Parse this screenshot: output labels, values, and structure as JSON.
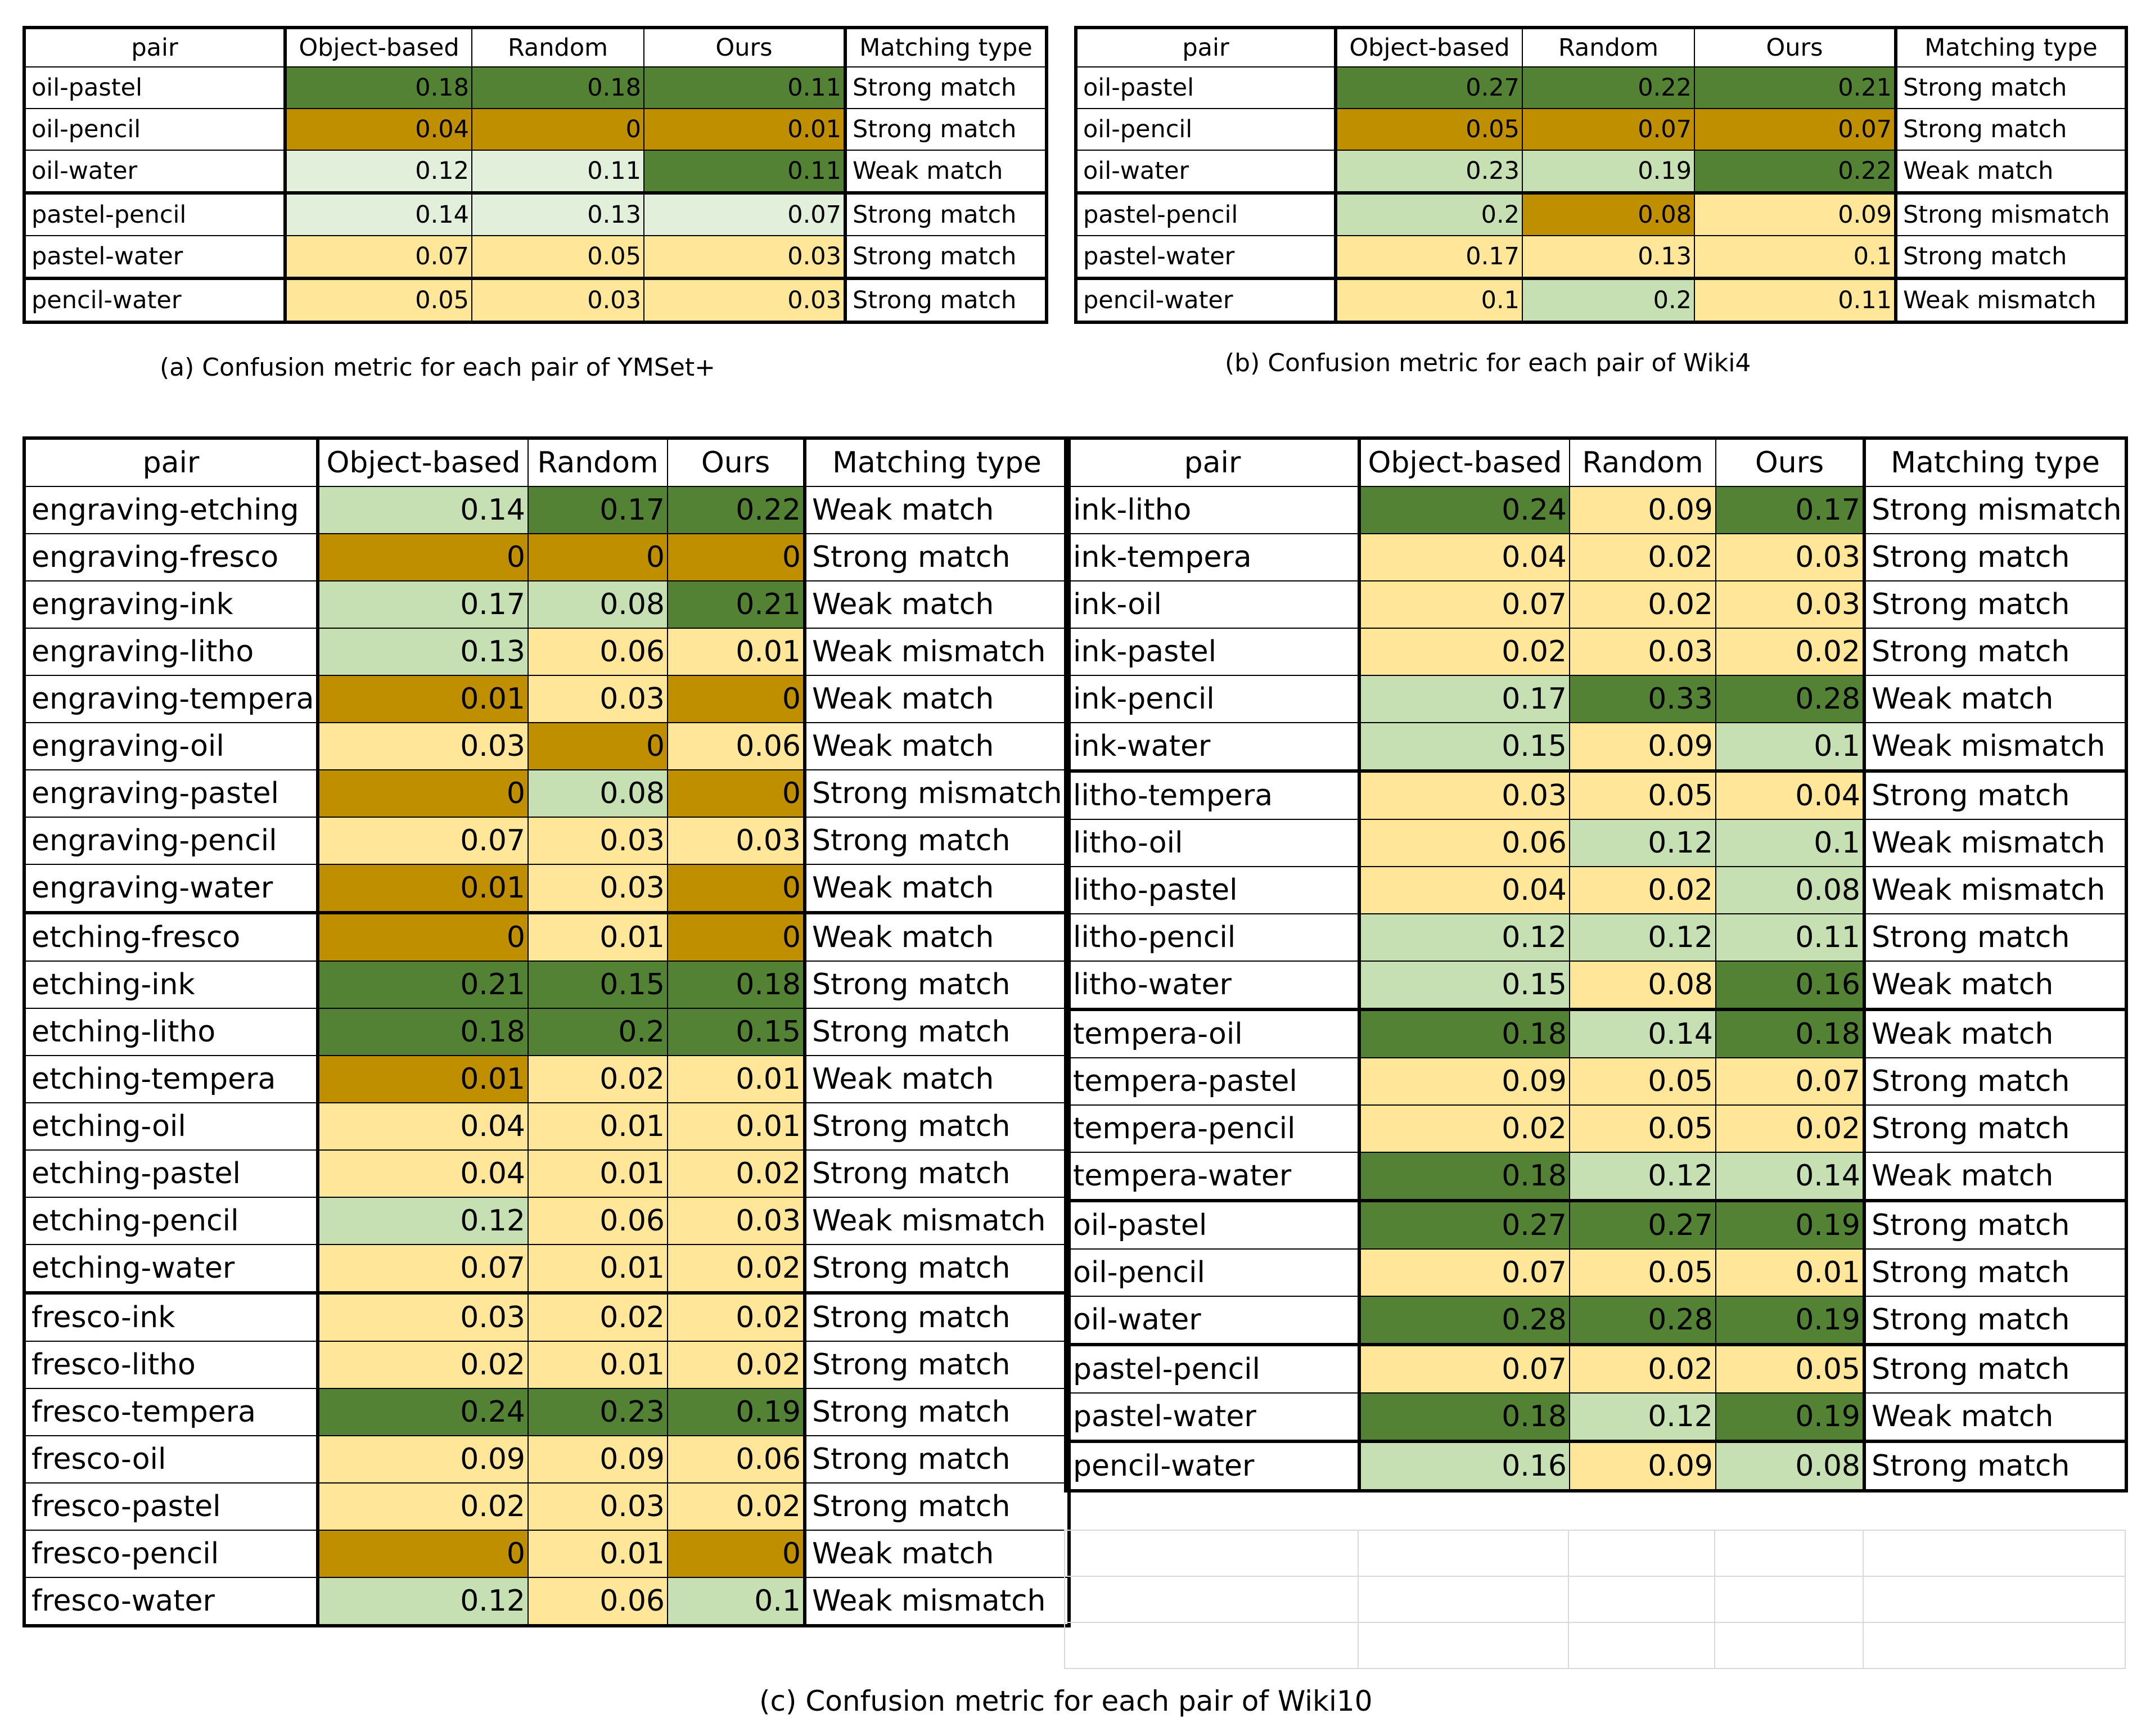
{
  "colors": {
    "dark_green": "#548235",
    "light_green": "#c6e0b4",
    "pale_green": "#e2efda",
    "light_yellow": "#ffe699",
    "dark_gold": "#bf8f00",
    "white": "#ffffff"
  },
  "headers": [
    "pair",
    "Object-based",
    "Random",
    "Ours",
    "Matching type"
  ],
  "tableA": {
    "caption": "(a) Confusion metric for each pair of YMSet+",
    "rows": [
      {
        "pair": "oil-pastel",
        "ob": "0.18",
        "rd": "0.18",
        "ours": "0.11",
        "mt": "Strong match",
        "c": [
          "dg",
          "dg",
          "dg"
        ]
      },
      {
        "pair": "oil-pencil",
        "ob": "0.04",
        "rd": "0",
        "ours": "0.01",
        "mt": "Strong match",
        "c": [
          "gd",
          "gd",
          "gd"
        ]
      },
      {
        "pair": "oil-water",
        "ob": "0.12",
        "rd": "0.11",
        "ours": "0.11",
        "mt": "Weak match",
        "c": [
          "pg",
          "pg",
          "dg"
        ]
      },
      {
        "pair": "pastel-pencil",
        "ob": "0.14",
        "rd": "0.13",
        "ours": "0.07",
        "mt": "Strong match",
        "c": [
          "pg",
          "pg",
          "pg"
        ],
        "sep": true
      },
      {
        "pair": "pastel-water",
        "ob": "0.07",
        "rd": "0.05",
        "ours": "0.03",
        "mt": "Strong match",
        "c": [
          "ly",
          "ly",
          "ly"
        ]
      },
      {
        "pair": "pencil-water",
        "ob": "0.05",
        "rd": "0.03",
        "ours": "0.03",
        "mt": "Strong match",
        "c": [
          "ly",
          "ly",
          "ly"
        ],
        "sep": true
      }
    ]
  },
  "tableB": {
    "caption": "(b) Confusion metric for each pair of Wiki4",
    "rows": [
      {
        "pair": "oil-pastel",
        "ob": "0.27",
        "rd": "0.22",
        "ours": "0.21",
        "mt": "Strong match",
        "c": [
          "dg",
          "dg",
          "dg"
        ]
      },
      {
        "pair": "oil-pencil",
        "ob": "0.05",
        "rd": "0.07",
        "ours": "0.07",
        "mt": "Strong match",
        "c": [
          "gd",
          "gd",
          "gd"
        ]
      },
      {
        "pair": "oil-water",
        "ob": "0.23",
        "rd": "0.19",
        "ours": "0.22",
        "mt": "Weak match",
        "c": [
          "lg",
          "lg",
          "dg"
        ]
      },
      {
        "pair": "pastel-pencil",
        "ob": "0.2",
        "rd": "0.08",
        "ours": "0.09",
        "mt": "Strong mismatch",
        "c": [
          "lg",
          "gd",
          "ly"
        ],
        "sep": true
      },
      {
        "pair": "pastel-water",
        "ob": "0.17",
        "rd": "0.13",
        "ours": "0.1",
        "mt": "Strong match",
        "c": [
          "ly",
          "ly",
          "ly"
        ]
      },
      {
        "pair": "pencil-water",
        "ob": "0.1",
        "rd": "0.2",
        "ours": "0.11",
        "mt": "Weak mismatch",
        "c": [
          "ly",
          "lg",
          "ly"
        ],
        "sep": true
      }
    ]
  },
  "tableC": {
    "caption": "(c) Confusion metric for each pair of Wiki10",
    "left": [
      {
        "pair": "engraving-etching",
        "ob": "0.14",
        "rd": "0.17",
        "ours": "0.22",
        "mt": "Weak match",
        "c": [
          "lg",
          "dg",
          "dg"
        ]
      },
      {
        "pair": "engraving-fresco",
        "ob": "0",
        "rd": "0",
        "ours": "0",
        "mt": "Strong match",
        "c": [
          "gd",
          "gd",
          "gd"
        ]
      },
      {
        "pair": "engraving-ink",
        "ob": "0.17",
        "rd": "0.08",
        "ours": "0.21",
        "mt": "Weak match",
        "c": [
          "lg",
          "lg",
          "dg"
        ]
      },
      {
        "pair": "engraving-litho",
        "ob": "0.13",
        "rd": "0.06",
        "ours": "0.01",
        "mt": "Weak mismatch",
        "c": [
          "lg",
          "ly",
          "ly"
        ]
      },
      {
        "pair": "engraving-tempera",
        "ob": "0.01",
        "rd": "0.03",
        "ours": "0",
        "mt": "Weak match",
        "c": [
          "gd",
          "ly",
          "gd"
        ]
      },
      {
        "pair": "engraving-oil",
        "ob": "0.03",
        "rd": "0",
        "ours": "0.06",
        "mt": "Weak match",
        "c": [
          "ly",
          "gd",
          "ly"
        ]
      },
      {
        "pair": "engraving-pastel",
        "ob": "0",
        "rd": "0.08",
        "ours": "0",
        "mt": "Strong mismatch",
        "c": [
          "gd",
          "lg",
          "gd"
        ]
      },
      {
        "pair": "engraving-pencil",
        "ob": "0.07",
        "rd": "0.03",
        "ours": "0.03",
        "mt": "Strong match",
        "c": [
          "ly",
          "ly",
          "ly"
        ]
      },
      {
        "pair": "engraving-water",
        "ob": "0.01",
        "rd": "0.03",
        "ours": "0",
        "mt": "Weak match",
        "c": [
          "gd",
          "ly",
          "gd"
        ]
      },
      {
        "pair": "etching-fresco",
        "ob": "0",
        "rd": "0.01",
        "ours": "0",
        "mt": "Weak match",
        "c": [
          "gd",
          "ly",
          "gd"
        ],
        "sep": true
      },
      {
        "pair": "etching-ink",
        "ob": "0.21",
        "rd": "0.15",
        "ours": "0.18",
        "mt": "Strong match",
        "c": [
          "dg",
          "dg",
          "dg"
        ]
      },
      {
        "pair": "etching-litho",
        "ob": "0.18",
        "rd": "0.2",
        "ours": "0.15",
        "mt": "Strong match",
        "c": [
          "dg",
          "dg",
          "dg"
        ]
      },
      {
        "pair": "etching-tempera",
        "ob": "0.01",
        "rd": "0.02",
        "ours": "0.01",
        "mt": "Weak match",
        "c": [
          "gd",
          "ly",
          "ly"
        ]
      },
      {
        "pair": "etching-oil",
        "ob": "0.04",
        "rd": "0.01",
        "ours": "0.01",
        "mt": "Strong match",
        "c": [
          "ly",
          "ly",
          "ly"
        ]
      },
      {
        "pair": "etching-pastel",
        "ob": "0.04",
        "rd": "0.01",
        "ours": "0.02",
        "mt": "Strong match",
        "c": [
          "ly",
          "ly",
          "ly"
        ]
      },
      {
        "pair": "etching-pencil",
        "ob": "0.12",
        "rd": "0.06",
        "ours": "0.03",
        "mt": "Weak mismatch",
        "c": [
          "lg",
          "ly",
          "ly"
        ]
      },
      {
        "pair": "etching-water",
        "ob": "0.07",
        "rd": "0.01",
        "ours": "0.02",
        "mt": "Strong match",
        "c": [
          "ly",
          "ly",
          "ly"
        ]
      },
      {
        "pair": "fresco-ink",
        "ob": "0.03",
        "rd": "0.02",
        "ours": "0.02",
        "mt": "Strong match",
        "c": [
          "ly",
          "ly",
          "ly"
        ],
        "sep": true
      },
      {
        "pair": "fresco-litho",
        "ob": "0.02",
        "rd": "0.01",
        "ours": "0.02",
        "mt": "Strong match",
        "c": [
          "ly",
          "ly",
          "ly"
        ]
      },
      {
        "pair": "fresco-tempera",
        "ob": "0.24",
        "rd": "0.23",
        "ours": "0.19",
        "mt": "Strong match",
        "c": [
          "dg",
          "dg",
          "dg"
        ]
      },
      {
        "pair": "fresco-oil",
        "ob": "0.09",
        "rd": "0.09",
        "ours": "0.06",
        "mt": "Strong match",
        "c": [
          "ly",
          "ly",
          "ly"
        ]
      },
      {
        "pair": "fresco-pastel",
        "ob": "0.02",
        "rd": "0.03",
        "ours": "0.02",
        "mt": "Strong match",
        "c": [
          "ly",
          "ly",
          "ly"
        ]
      },
      {
        "pair": "fresco-pencil",
        "ob": "0",
        "rd": "0.01",
        "ours": "0",
        "mt": "Weak match",
        "c": [
          "gd",
          "ly",
          "gd"
        ]
      },
      {
        "pair": "fresco-water",
        "ob": "0.12",
        "rd": "0.06",
        "ours": "0.1",
        "mt": "Weak mismatch",
        "c": [
          "lg",
          "ly",
          "lg"
        ]
      }
    ],
    "right": [
      {
        "pair": "ink-litho",
        "ob": "0.24",
        "rd": "0.09",
        "ours": "0.17",
        "mt": "Strong mismatch",
        "c": [
          "dg",
          "ly",
          "dg"
        ]
      },
      {
        "pair": "ink-tempera",
        "ob": "0.04",
        "rd": "0.02",
        "ours": "0.03",
        "mt": "Strong match",
        "c": [
          "ly",
          "ly",
          "ly"
        ]
      },
      {
        "pair": "ink-oil",
        "ob": "0.07",
        "rd": "0.02",
        "ours": "0.03",
        "mt": "Strong match",
        "c": [
          "ly",
          "ly",
          "ly"
        ]
      },
      {
        "pair": "ink-pastel",
        "ob": "0.02",
        "rd": "0.03",
        "ours": "0.02",
        "mt": "Strong match",
        "c": [
          "ly",
          "ly",
          "ly"
        ]
      },
      {
        "pair": "ink-pencil",
        "ob": "0.17",
        "rd": "0.33",
        "ours": "0.28",
        "mt": "Weak match",
        "c": [
          "lg",
          "dg",
          "dg"
        ]
      },
      {
        "pair": "ink-water",
        "ob": "0.15",
        "rd": "0.09",
        "ours": "0.1",
        "mt": "Weak mismatch",
        "c": [
          "lg",
          "ly",
          "lg"
        ]
      },
      {
        "pair": "litho-tempera",
        "ob": "0.03",
        "rd": "0.05",
        "ours": "0.04",
        "mt": "Strong match",
        "c": [
          "ly",
          "ly",
          "ly"
        ],
        "sep": true
      },
      {
        "pair": "litho-oil",
        "ob": "0.06",
        "rd": "0.12",
        "ours": "0.1",
        "mt": "Weak mismatch",
        "c": [
          "ly",
          "lg",
          "lg"
        ]
      },
      {
        "pair": "litho-pastel",
        "ob": "0.04",
        "rd": "0.02",
        "ours": "0.08",
        "mt": "Weak mismatch",
        "c": [
          "ly",
          "ly",
          "lg"
        ]
      },
      {
        "pair": "litho-pencil",
        "ob": "0.12",
        "rd": "0.12",
        "ours": "0.11",
        "mt": "Strong match",
        "c": [
          "lg",
          "lg",
          "lg"
        ]
      },
      {
        "pair": "litho-water",
        "ob": "0.15",
        "rd": "0.08",
        "ours": "0.16",
        "mt": "Weak match",
        "c": [
          "lg",
          "ly",
          "dg"
        ]
      },
      {
        "pair": "tempera-oil",
        "ob": "0.18",
        "rd": "0.14",
        "ours": "0.18",
        "mt": "Weak match",
        "c": [
          "dg",
          "lg",
          "dg"
        ],
        "sep": true
      },
      {
        "pair": "tempera-pastel",
        "ob": "0.09",
        "rd": "0.05",
        "ours": "0.07",
        "mt": "Strong match",
        "c": [
          "ly",
          "ly",
          "ly"
        ]
      },
      {
        "pair": "tempera-pencil",
        "ob": "0.02",
        "rd": "0.05",
        "ours": "0.02",
        "mt": "Strong match",
        "c": [
          "ly",
          "ly",
          "ly"
        ]
      },
      {
        "pair": "tempera-water",
        "ob": "0.18",
        "rd": "0.12",
        "ours": "0.14",
        "mt": "Weak match",
        "c": [
          "dg",
          "lg",
          "lg"
        ]
      },
      {
        "pair": "oil-pastel",
        "ob": "0.27",
        "rd": "0.27",
        "ours": "0.19",
        "mt": "Strong match",
        "c": [
          "dg",
          "dg",
          "dg"
        ],
        "sep": true
      },
      {
        "pair": "oil-pencil",
        "ob": "0.07",
        "rd": "0.05",
        "ours": "0.01",
        "mt": "Strong match",
        "c": [
          "ly",
          "ly",
          "ly"
        ]
      },
      {
        "pair": "oil-water",
        "ob": "0.28",
        "rd": "0.28",
        "ours": "0.19",
        "mt": "Strong match",
        "c": [
          "dg",
          "dg",
          "dg"
        ]
      },
      {
        "pair": "pastel-pencil",
        "ob": "0.07",
        "rd": "0.02",
        "ours": "0.05",
        "mt": "Strong match",
        "c": [
          "ly",
          "ly",
          "ly"
        ],
        "sep": true
      },
      {
        "pair": "pastel-water",
        "ob": "0.18",
        "rd": "0.12",
        "ours": "0.19",
        "mt": "Weak match",
        "c": [
          "dg",
          "lg",
          "dg"
        ]
      },
      {
        "pair": "pencil-water",
        "ob": "0.16",
        "rd": "0.09",
        "ours": "0.08",
        "mt": "Strong match",
        "c": [
          "lg",
          "ly",
          "lg"
        ],
        "sep": true
      }
    ]
  }
}
